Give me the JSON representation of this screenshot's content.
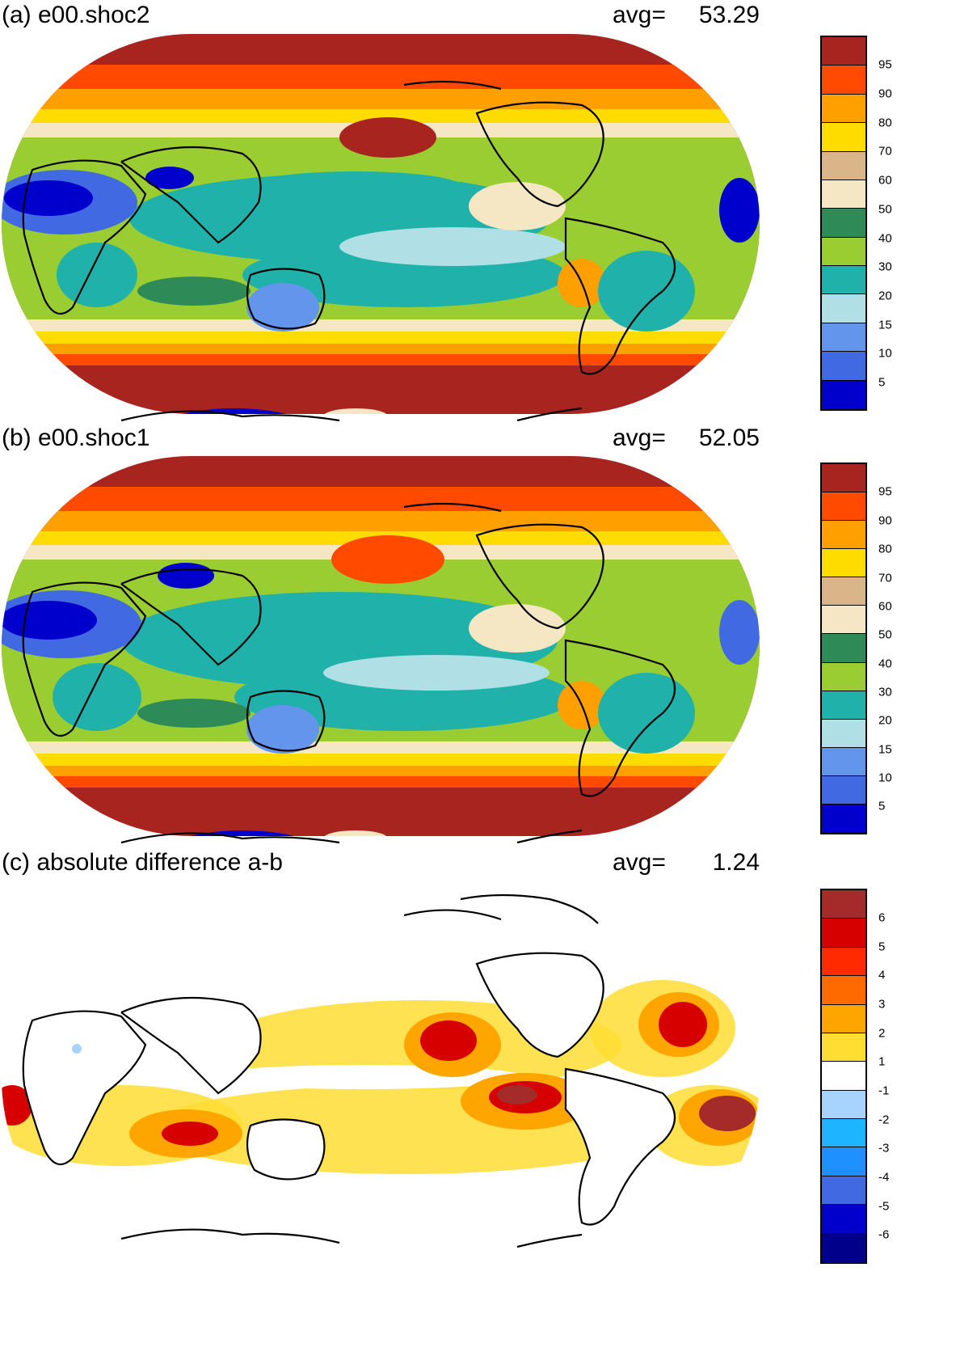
{
  "panels": [
    {
      "id": "a",
      "title": "(a) e00.shoc2",
      "avg_label": "avg=",
      "avg_value": "53.29",
      "colorbar": {
        "colors": [
          "#a8241f",
          "#ff4a00",
          "#ff9f00",
          "#ffdc00",
          "#dbb58a",
          "#f5e6c4",
          "#2e8b57",
          "#9acd32",
          "#20b2aa",
          "#b0e0e6",
          "#6495ed",
          "#4169e1",
          "#0000cd"
        ],
        "ticks": [
          "95",
          "90",
          "80",
          "70",
          "60",
          "50",
          "40",
          "30",
          "20",
          "15",
          "10",
          "5"
        ]
      }
    },
    {
      "id": "b",
      "title": "(b) e00.shoc1",
      "avg_label": "avg=",
      "avg_value": "52.05",
      "colorbar": {
        "colors": [
          "#a8241f",
          "#ff4a00",
          "#ff9f00",
          "#ffdc00",
          "#dbb58a",
          "#f5e6c4",
          "#2e8b57",
          "#9acd32",
          "#20b2aa",
          "#b0e0e6",
          "#6495ed",
          "#4169e1",
          "#0000cd"
        ],
        "ticks": [
          "95",
          "90",
          "80",
          "70",
          "60",
          "50",
          "40",
          "30",
          "20",
          "15",
          "10",
          "5"
        ]
      }
    },
    {
      "id": "c",
      "title": "(c) absolute difference a-b",
      "avg_label": "avg=",
      "avg_value": "1.24",
      "colorbar": {
        "colors": [
          "#a52a2a",
          "#d60000",
          "#ff2a00",
          "#ff6a00",
          "#ffa500",
          "#ffdd33",
          "#ffffff",
          "#a7d3ff",
          "#1eb4ff",
          "#1e90ff",
          "#4169e1",
          "#0000cd",
          "#00008b"
        ],
        "ticks": [
          "6",
          "5",
          "4",
          "3",
          "2",
          "1",
          "-1",
          "-2",
          "-3",
          "-4",
          "-5",
          "-6"
        ]
      }
    }
  ]
}
